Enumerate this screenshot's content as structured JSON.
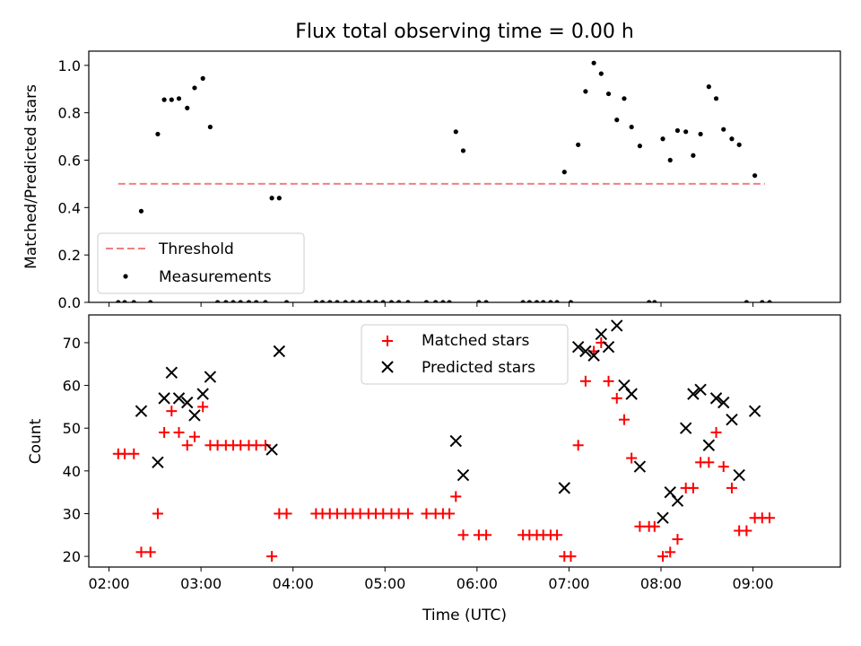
{
  "title": "Flux total observing time = 0.00 h",
  "chart_data": [
    {
      "type": "scatter",
      "ylabel": "Matched/Predicted stars",
      "xlim": [
        1.78,
        9.95
      ],
      "ylim": [
        0,
        1.06
      ],
      "yticks": [
        0.0,
        0.2,
        0.4,
        0.6,
        0.8,
        1.0
      ],
      "yticklabels": [
        "0.0",
        "0.2",
        "0.4",
        "0.6",
        "0.8",
        "1.0"
      ],
      "legend": {
        "position": "lower-left",
        "entries": [
          "Threshold",
          "Measurements"
        ]
      },
      "threshold": {
        "name": "Threshold",
        "y": 0.5,
        "x": [
          2.1,
          9.13
        ],
        "color": "#f08080"
      },
      "series": [
        {
          "name": "Measurements",
          "color": "#000000",
          "x": [
            2.1,
            2.17,
            2.27,
            2.35,
            2.45,
            2.53,
            2.6,
            2.68,
            2.76,
            2.85,
            2.93,
            3.02,
            3.1,
            3.18,
            3.27,
            3.35,
            3.43,
            3.52,
            3.6,
            3.7,
            3.77,
            3.85,
            3.93,
            4.25,
            4.32,
            4.4,
            4.48,
            4.57,
            4.65,
            4.73,
            4.82,
            4.9,
            4.98,
            5.07,
            5.15,
            5.25,
            5.45,
            5.55,
            5.63,
            5.7,
            5.77,
            5.85,
            6.02,
            6.1,
            6.5,
            6.57,
            6.65,
            6.72,
            6.8,
            6.87,
            6.95,
            7.02,
            7.1,
            7.18,
            7.27,
            7.35,
            7.43,
            7.52,
            7.6,
            7.68,
            7.77,
            7.87,
            7.93,
            8.02,
            8.1,
            8.18,
            8.27,
            8.35,
            8.43,
            8.52,
            8.6,
            8.68,
            8.77,
            8.85,
            8.93,
            9.02,
            9.1,
            9.18
          ],
          "y": [
            0,
            0,
            0,
            0.385,
            0,
            0.71,
            0.855,
            0.855,
            0.86,
            0.82,
            0.905,
            0.945,
            0.74,
            0,
            0,
            0,
            0,
            0,
            0,
            0,
            0.44,
            0.44,
            0,
            0,
            0,
            0,
            0,
            0,
            0,
            0,
            0,
            0,
            0,
            0,
            0,
            0,
            0,
            0,
            0,
            0,
            0.72,
            0.64,
            0,
            0,
            0,
            0,
            0,
            0,
            0,
            0,
            0.55,
            0,
            0.665,
            0.89,
            1.01,
            0.965,
            0.88,
            0.77,
            0.86,
            0.74,
            0.66,
            0,
            0,
            0.69,
            0.6,
            0.725,
            0.72,
            0.62,
            0.71,
            0.91,
            0.86,
            0.73,
            0.69,
            0.665,
            0,
            0.535,
            0,
            0
          ]
        }
      ]
    },
    {
      "type": "scatter",
      "xlabel": "Time (UTC)",
      "ylabel": "Count",
      "xlim": [
        1.78,
        9.95
      ],
      "ylim": [
        17.5,
        76.5
      ],
      "xticks": [
        2,
        3,
        4,
        5,
        6,
        7,
        8,
        9
      ],
      "xticklabels": [
        "02:00",
        "03:00",
        "04:00",
        "05:00",
        "06:00",
        "07:00",
        "08:00",
        "09:00"
      ],
      "yticks": [
        20,
        30,
        40,
        50,
        60,
        70
      ],
      "yticklabels": [
        "20",
        "30",
        "40",
        "50",
        "60",
        "70"
      ],
      "legend": {
        "position": "upper-center",
        "entries": [
          "Matched stars",
          "Predicted stars"
        ]
      },
      "series": [
        {
          "name": "Matched stars",
          "marker": "plus",
          "color": "#ff0000",
          "x": [
            2.1,
            2.17,
            2.27,
            2.35,
            2.45,
            2.53,
            2.6,
            2.68,
            2.76,
            2.85,
            2.93,
            3.02,
            3.1,
            3.18,
            3.27,
            3.35,
            3.43,
            3.52,
            3.6,
            3.7,
            3.77,
            3.85,
            3.93,
            4.25,
            4.32,
            4.4,
            4.48,
            4.57,
            4.65,
            4.73,
            4.82,
            4.9,
            4.98,
            5.07,
            5.15,
            5.25,
            5.45,
            5.55,
            5.63,
            5.7,
            5.77,
            5.85,
            6.02,
            6.1,
            6.5,
            6.57,
            6.65,
            6.72,
            6.8,
            6.87,
            6.95,
            7.02,
            7.1,
            7.18,
            7.27,
            7.35,
            7.43,
            7.52,
            7.6,
            7.68,
            7.77,
            7.87,
            7.93,
            8.02,
            8.1,
            8.18,
            8.27,
            8.35,
            8.43,
            8.52,
            8.6,
            8.68,
            8.77,
            8.85,
            8.93,
            9.02,
            9.1,
            9.18
          ],
          "y": [
            44,
            44,
            44,
            21,
            21,
            30,
            49,
            54,
            49,
            46,
            48,
            55,
            46,
            46,
            46,
            46,
            46,
            46,
            46,
            46,
            20,
            30,
            30,
            30,
            30,
            30,
            30,
            30,
            30,
            30,
            30,
            30,
            30,
            30,
            30,
            30,
            30,
            30,
            30,
            30,
            34,
            25,
            25,
            25,
            25,
            25,
            25,
            25,
            25,
            25,
            20,
            20,
            46,
            61,
            68,
            70,
            61,
            57,
            52,
            43,
            27,
            27,
            27,
            20,
            21,
            24,
            36,
            36,
            42,
            42,
            49,
            41,
            36,
            26,
            26,
            29,
            29,
            29
          ]
        },
        {
          "name": "Predicted stars",
          "marker": "x",
          "color": "#000000",
          "x": [
            2.35,
            2.53,
            2.6,
            2.68,
            2.76,
            2.85,
            2.93,
            3.02,
            3.1,
            3.77,
            3.85,
            5.77,
            5.85,
            6.95,
            7.1,
            7.18,
            7.27,
            7.35,
            7.43,
            7.52,
            7.6,
            7.68,
            7.77,
            8.02,
            8.1,
            8.18,
            8.27,
            8.35,
            8.43,
            8.52,
            8.6,
            8.68,
            8.77,
            8.85,
            9.02
          ],
          "y": [
            54,
            42,
            57,
            63,
            57,
            56,
            53,
            58,
            62,
            45,
            68,
            47,
            39,
            36,
            69,
            68,
            67,
            72,
            69,
            74,
            60,
            58,
            41,
            29,
            35,
            33,
            50,
            58,
            59,
            46,
            57,
            56,
            52,
            39,
            54
          ]
        }
      ]
    }
  ]
}
